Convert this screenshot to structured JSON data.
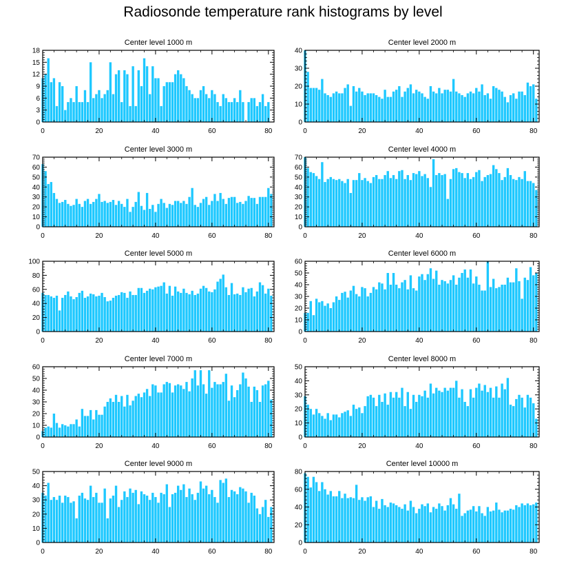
{
  "title": "Radiosonde temperature rank histograms by level",
  "bar_color": "#1ec8ff",
  "chart_data": [
    {
      "type": "bar",
      "title": "Center level 1000 m",
      "xlabel": "",
      "ylabel": "",
      "xlim": [
        0,
        82
      ],
      "xticks": [
        0,
        20,
        40,
        60,
        80
      ],
      "ylim": [
        0,
        18
      ],
      "yticks": [
        0,
        3,
        6,
        9,
        12,
        15,
        18
      ],
      "values": [
        11,
        12,
        16,
        10,
        11,
        4,
        10,
        9,
        3,
        5,
        6,
        5,
        9,
        5,
        5,
        8,
        5,
        15,
        6,
        7,
        8,
        6,
        7,
        8,
        15,
        7,
        12,
        13,
        5,
        13,
        12,
        4,
        14,
        4,
        13,
        9,
        16,
        14,
        7,
        14,
        11,
        11,
        4,
        9,
        10,
        10,
        10,
        12,
        13,
        12,
        11,
        9,
        8,
        7,
        6,
        6,
        8,
        9,
        7,
        6,
        8,
        7,
        5,
        4,
        7,
        6,
        5,
        5,
        6,
        5,
        8,
        5,
        0,
        5,
        6,
        6,
        4,
        5,
        7,
        4,
        5
      ]
    },
    {
      "type": "bar",
      "title": "Center level 2000 m",
      "xlabel": "",
      "ylabel": "",
      "xlim": [
        0,
        82
      ],
      "xticks": [
        0,
        20,
        40,
        60,
        80
      ],
      "ylim": [
        0,
        40
      ],
      "yticks": [
        0,
        10,
        20,
        30,
        40
      ],
      "values": [
        40,
        28,
        19,
        19,
        19,
        18,
        24,
        16,
        15,
        14,
        16,
        17,
        16,
        16,
        19,
        21,
        9,
        20,
        17,
        19,
        17,
        15,
        16,
        16,
        16,
        15,
        14,
        13,
        18,
        14,
        14,
        17,
        18,
        20,
        14,
        17,
        19,
        21,
        16,
        18,
        17,
        16,
        14,
        13,
        20,
        17,
        16,
        19,
        16,
        18,
        18,
        17,
        24,
        17,
        16,
        15,
        14,
        16,
        17,
        16,
        19,
        17,
        21,
        15,
        16,
        13,
        20,
        19,
        18,
        17,
        14,
        11,
        15,
        16,
        13,
        17,
        17,
        15,
        22,
        20,
        21,
        13
      ]
    },
    {
      "type": "bar",
      "title": "Center level 3000 m",
      "xlabel": "",
      "ylabel": "",
      "xlim": [
        0,
        82
      ],
      "xticks": [
        0,
        20,
        40,
        60,
        80
      ],
      "ylim": [
        0,
        70
      ],
      "yticks": [
        0,
        10,
        20,
        30,
        40,
        50,
        60,
        70
      ],
      "values": [
        63,
        56,
        43,
        45,
        34,
        28,
        24,
        25,
        27,
        23,
        21,
        22,
        28,
        23,
        20,
        26,
        28,
        23,
        25,
        28,
        33,
        25,
        26,
        24,
        25,
        27,
        22,
        26,
        23,
        20,
        28,
        15,
        20,
        25,
        35,
        21,
        17,
        34,
        18,
        22,
        15,
        23,
        28,
        24,
        19,
        23,
        22,
        26,
        26,
        24,
        26,
        23,
        30,
        39,
        22,
        20,
        24,
        28,
        30,
        22,
        26,
        33,
        26,
        34,
        28,
        23,
        29,
        30,
        30,
        24,
        25,
        23,
        26,
        31,
        29,
        29,
        23,
        30,
        30,
        30,
        39,
        33
      ]
    },
    {
      "type": "bar",
      "title": "Center level 4000 m",
      "xlabel": "",
      "ylabel": "",
      "xlim": [
        0,
        82
      ],
      "xticks": [
        0,
        20,
        40,
        60,
        80
      ],
      "ylim": [
        0,
        70
      ],
      "yticks": [
        0,
        10,
        20,
        30,
        40,
        50,
        60,
        70
      ],
      "values": [
        70,
        59,
        55,
        54,
        51,
        48,
        65,
        45,
        48,
        50,
        48,
        47,
        48,
        46,
        44,
        48,
        34,
        47,
        47,
        54,
        47,
        49,
        46,
        44,
        50,
        52,
        48,
        48,
        52,
        56,
        49,
        52,
        48,
        56,
        57,
        48,
        52,
        47,
        54,
        53,
        56,
        51,
        53,
        49,
        40,
        68,
        52,
        54,
        52,
        53,
        28,
        48,
        58,
        59,
        55,
        54,
        49,
        54,
        48,
        50,
        55,
        57,
        46,
        50,
        52,
        53,
        62,
        58,
        54,
        47,
        50,
        59,
        52,
        48,
        47,
        50,
        48,
        56,
        46,
        46,
        44,
        37
      ]
    },
    {
      "type": "bar",
      "title": "Center level 5000 m",
      "xlabel": "",
      "ylabel": "",
      "xlim": [
        0,
        82
      ],
      "xticks": [
        0,
        20,
        40,
        60,
        80
      ],
      "ylim": [
        0,
        100
      ],
      "yticks": [
        0,
        20,
        40,
        60,
        80,
        100
      ],
      "values": [
        55,
        52,
        52,
        50,
        48,
        51,
        30,
        48,
        52,
        57,
        50,
        46,
        49,
        55,
        58,
        48,
        50,
        54,
        53,
        50,
        51,
        55,
        49,
        43,
        44,
        48,
        51,
        52,
        56,
        55,
        48,
        57,
        52,
        52,
        62,
        62,
        55,
        58,
        61,
        60,
        63,
        64,
        65,
        70,
        54,
        65,
        51,
        64,
        57,
        55,
        61,
        55,
        53,
        58,
        52,
        54,
        61,
        65,
        62,
        57,
        56,
        60,
        71,
        75,
        81,
        63,
        52,
        69,
        53,
        54,
        52,
        63,
        56,
        61,
        62,
        50,
        57,
        70,
        66,
        54,
        61,
        51
      ]
    },
    {
      "type": "bar",
      "title": "Center level 6000 m",
      "xlabel": "",
      "ylabel": "",
      "xlim": [
        0,
        82
      ],
      "xticks": [
        0,
        20,
        40,
        60,
        80
      ],
      "ylim": [
        0,
        60
      ],
      "yticks": [
        0,
        10,
        20,
        30,
        40,
        50,
        60
      ],
      "values": [
        16,
        16,
        26,
        14,
        28,
        25,
        26,
        22,
        24,
        20,
        25,
        30,
        27,
        33,
        34,
        29,
        35,
        39,
        32,
        30,
        38,
        37,
        30,
        33,
        38,
        36,
        42,
        41,
        36,
        50,
        40,
        50,
        40,
        37,
        42,
        44,
        36,
        48,
        37,
        35,
        47,
        49,
        44,
        49,
        54,
        45,
        52,
        40,
        44,
        43,
        41,
        44,
        48,
        40,
        46,
        50,
        53,
        46,
        53,
        41,
        47,
        40,
        35,
        35,
        60,
        38,
        45,
        37,
        38,
        40,
        40,
        46,
        42,
        42,
        54,
        43,
        28,
        46,
        44,
        55,
        48,
        50
      ]
    },
    {
      "type": "bar",
      "title": "Center level 7000 m",
      "xlabel": "",
      "ylabel": "",
      "xlim": [
        0,
        82
      ],
      "xticks": [
        0,
        20,
        40,
        60,
        80
      ],
      "ylim": [
        0,
        60
      ],
      "yticks": [
        0,
        10,
        20,
        30,
        40,
        50,
        60
      ],
      "values": [
        5,
        8,
        9,
        8,
        20,
        12,
        8,
        11,
        10,
        9,
        11,
        11,
        15,
        9,
        24,
        18,
        18,
        23,
        15,
        23,
        19,
        19,
        26,
        30,
        33,
        30,
        36,
        30,
        35,
        26,
        36,
        27,
        31,
        35,
        37,
        34,
        38,
        41,
        35,
        45,
        44,
        38,
        38,
        45,
        47,
        46,
        38,
        44,
        45,
        44,
        41,
        47,
        39,
        50,
        57,
        44,
        57,
        45,
        37,
        57,
        42,
        47,
        45,
        45,
        47,
        54,
        31,
        44,
        34,
        40,
        45,
        55,
        50,
        43,
        30,
        43,
        40,
        30,
        44,
        45,
        48,
        32
      ]
    },
    {
      "type": "bar",
      "title": "Center level 8000 m",
      "xlabel": "",
      "ylabel": "",
      "xlim": [
        0,
        82
      ],
      "xticks": [
        0,
        20,
        40,
        60,
        80
      ],
      "ylim": [
        0,
        50
      ],
      "yticks": [
        0,
        10,
        20,
        30,
        40,
        50
      ],
      "values": [
        29,
        23,
        20,
        16,
        20,
        17,
        15,
        13,
        17,
        12,
        16,
        16,
        14,
        17,
        18,
        19,
        15,
        23,
        20,
        21,
        17,
        22,
        29,
        30,
        28,
        22,
        30,
        25,
        31,
        23,
        32,
        28,
        32,
        28,
        35,
        22,
        32,
        20,
        30,
        25,
        30,
        29,
        33,
        28,
        38,
        31,
        35,
        33,
        32,
        35,
        33,
        35,
        35,
        40,
        28,
        34,
        25,
        22,
        34,
        28,
        35,
        38,
        33,
        37,
        32,
        35,
        28,
        36,
        28,
        38,
        34,
        42,
        23,
        22,
        27,
        30,
        28,
        21,
        30,
        28,
        24,
        13
      ]
    },
    {
      "type": "bar",
      "title": "Center level 9000 m",
      "xlabel": "",
      "ylabel": "",
      "xlim": [
        0,
        82
      ],
      "xticks": [
        0,
        20,
        40,
        60,
        80
      ],
      "ylim": [
        0,
        50
      ],
      "yticks": [
        0,
        10,
        20,
        30,
        40,
        50
      ],
      "values": [
        35,
        33,
        42,
        30,
        32,
        30,
        33,
        28,
        33,
        32,
        28,
        29,
        17,
        33,
        35,
        31,
        30,
        40,
        32,
        35,
        28,
        28,
        38,
        17,
        31,
        33,
        40,
        25,
        30,
        36,
        32,
        38,
        35,
        37,
        27,
        36,
        34,
        33,
        30,
        35,
        32,
        28,
        35,
        34,
        41,
        25,
        34,
        35,
        40,
        37,
        41,
        32,
        38,
        34,
        30,
        35,
        43,
        38,
        40,
        34,
        37,
        32,
        28,
        44,
        42,
        45,
        32,
        37,
        36,
        34,
        39,
        38,
        36,
        28,
        35,
        33,
        24,
        20,
        25,
        30,
        18,
        25
      ]
    },
    {
      "type": "bar",
      "title": "Center level 10000 m",
      "xlabel": "",
      "ylabel": "",
      "xlim": [
        0,
        82
      ],
      "xticks": [
        0,
        20,
        40,
        60,
        80
      ],
      "ylim": [
        0,
        80
      ],
      "yticks": [
        0,
        20,
        40,
        60,
        80
      ],
      "values": [
        78,
        74,
        62,
        74,
        68,
        58,
        68,
        60,
        54,
        58,
        52,
        52,
        58,
        50,
        55,
        50,
        51,
        50,
        65,
        48,
        51,
        47,
        51,
        52,
        40,
        47,
        38,
        49,
        42,
        40,
        45,
        44,
        42,
        40,
        38,
        43,
        36,
        47,
        40,
        33,
        38,
        43,
        41,
        44,
        34,
        40,
        38,
        44,
        41,
        36,
        42,
        50,
        43,
        38,
        55,
        30,
        33,
        36,
        37,
        41,
        35,
        41,
        33,
        30,
        40,
        35,
        36,
        45,
        37,
        34,
        36,
        36,
        38,
        37,
        42,
        40,
        44,
        42,
        44,
        42,
        43,
        45
      ]
    }
  ]
}
